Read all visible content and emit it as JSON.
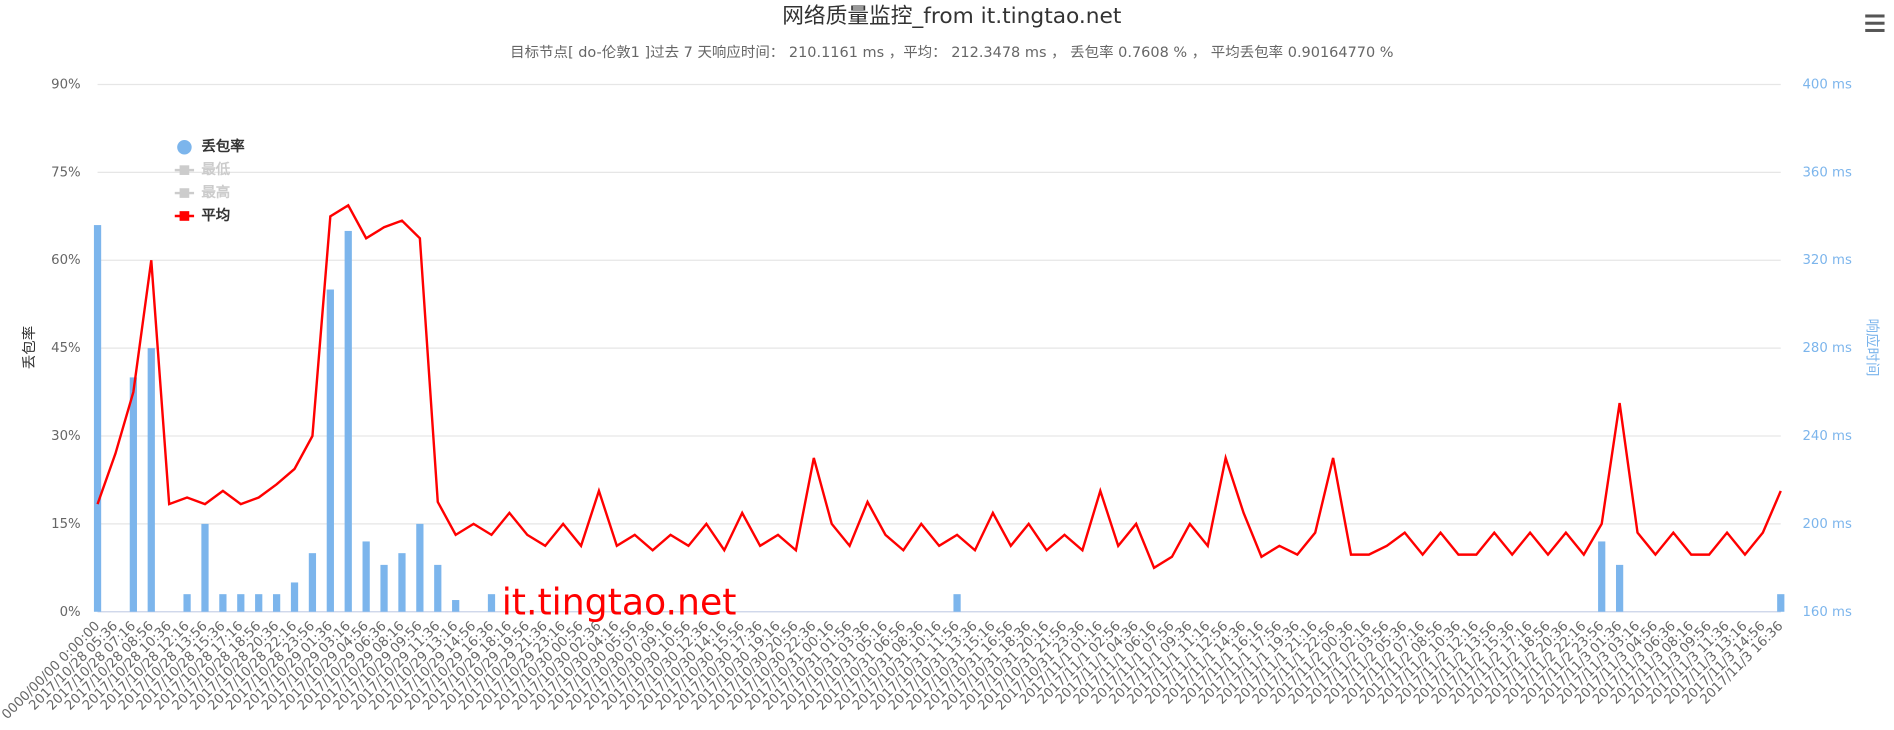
{
  "chart_data": {
    "type": "combo",
    "title": "网络质量监控_from it.tingtao.net",
    "subtitle": "目标节点[ do-伦敦1 ]过去 7 天响应时间： 210.1161 ms ，平均： 212.3478 ms ， 丢包率 0.7608 % ， 平均丢包率 0.90164770 %",
    "y_label": "丢包率",
    "y2_label": "响应时间",
    "watermark": "it.tingtao.net",
    "ylim": [
      0,
      90
    ],
    "yticks": [
      {
        "value": 0,
        "label": "0%"
      },
      {
        "value": 15,
        "label": "15%"
      },
      {
        "value": 30,
        "label": "30%"
      },
      {
        "value": 45,
        "label": "45%"
      },
      {
        "value": 60,
        "label": "60%"
      },
      {
        "value": 75,
        "label": "75%"
      },
      {
        "value": 90,
        "label": "90%"
      }
    ],
    "y2lim": [
      160,
      400
    ],
    "y2ticks": [
      {
        "value": 160,
        "label": "160 ms"
      },
      {
        "value": 200,
        "label": "200 ms"
      },
      {
        "value": 240,
        "label": "240 ms"
      },
      {
        "value": 280,
        "label": "280 ms"
      },
      {
        "value": 320,
        "label": "320 ms"
      },
      {
        "value": 360,
        "label": "360 ms"
      },
      {
        "value": 400,
        "label": "400 ms"
      }
    ],
    "grid": true,
    "categories": [
      "0000/00/00 0:00:00",
      "2017/10/28 05:36",
      "2017/10/28 07:16",
      "2017/10/28 08:56",
      "2017/10/28 10:36",
      "2017/10/28 12:16",
      "2017/10/28 13:56",
      "2017/10/28 15:36",
      "2017/10/28 17:16",
      "2017/10/28 18:56",
      "2017/10/28 20:36",
      "2017/10/28 22:16",
      "2017/10/28 23:56",
      "2017/10/29 01:36",
      "2017/10/29 03:16",
      "2017/10/29 04:56",
      "2017/10/29 06:36",
      "2017/10/29 08:16",
      "2017/10/29 09:56",
      "2017/10/29 11:36",
      "2017/10/29 13:16",
      "2017/10/29 14:56",
      "2017/10/29 16:36",
      "2017/10/29 18:16",
      "2017/10/29 19:56",
      "2017/10/29 21:36",
      "2017/10/29 23:16",
      "2017/10/30 00:56",
      "2017/10/30 02:36",
      "2017/10/30 04:16",
      "2017/10/30 05:56",
      "2017/10/30 07:36",
      "2017/10/30 09:16",
      "2017/10/30 10:56",
      "2017/10/30 12:36",
      "2017/10/30 14:16",
      "2017/10/30 15:56",
      "2017/10/30 17:36",
      "2017/10/30 19:16",
      "2017/10/30 20:56",
      "2017/10/30 22:36",
      "2017/10/31 00:16",
      "2017/10/31 01:56",
      "2017/10/31 03:36",
      "2017/10/31 05:16",
      "2017/10/31 06:56",
      "2017/10/31 08:36",
      "2017/10/31 10:16",
      "2017/10/31 11:56",
      "2017/10/31 13:36",
      "2017/10/31 15:16",
      "2017/10/31 16:56",
      "2017/10/31 18:36",
      "2017/10/31 20:16",
      "2017/10/31 21:56",
      "2017/10/31 23:36",
      "2017/11/1 01:16",
      "2017/11/1 02:56",
      "2017/11/1 04:36",
      "2017/11/1 06:16",
      "2017/11/1 07:56",
      "2017/11/1 09:36",
      "2017/11/1 11:16",
      "2017/11/1 12:56",
      "2017/11/1 14:36",
      "2017/11/1 16:16",
      "2017/11/1 17:56",
      "2017/11/1 19:36",
      "2017/11/1 21:16",
      "2017/11/1 22:56",
      "2017/11/2 00:36",
      "2017/11/2 02:16",
      "2017/11/2 03:56",
      "2017/11/2 05:36",
      "2017/11/2 07:16",
      "2017/11/2 08:56",
      "2017/11/2 10:36",
      "2017/11/2 12:16",
      "2017/11/2 13:56",
      "2017/11/2 15:36",
      "2017/11/2 17:16",
      "2017/11/2 18:56",
      "2017/11/2 20:36",
      "2017/11/2 22:16",
      "2017/11/2 23:56",
      "2017/11/3 01:36",
      "2017/11/3 03:16",
      "2017/11/3 04:56",
      "2017/11/3 06:36",
      "2017/11/3 08:16",
      "2017/11/3 09:56",
      "2017/11/3 11:36",
      "2017/11/3 13:16",
      "2017/11/3 14:56",
      "2017/11/3 16:36"
    ],
    "series": [
      {
        "name": "丢包率",
        "type": "bar",
        "color": "#7cb5ec",
        "visible": true,
        "values": [
          66,
          0,
          40,
          45,
          0,
          3,
          15,
          3,
          3,
          3,
          3,
          5,
          10,
          55,
          65,
          12,
          8,
          10,
          15,
          8,
          2,
          0,
          3,
          0,
          0,
          0,
          0,
          0,
          0,
          0,
          0,
          0,
          0,
          0,
          0,
          0,
          0,
          0,
          0,
          0,
          0,
          0,
          0,
          0,
          0,
          0,
          0,
          0,
          3,
          0,
          0,
          0,
          0,
          0,
          0,
          0,
          0,
          0,
          0,
          0,
          0,
          0,
          0,
          0,
          0,
          0,
          0,
          0,
          0,
          0,
          0,
          0,
          0,
          0,
          0,
          0,
          0,
          0,
          0,
          0,
          0,
          0,
          0,
          0,
          12,
          8,
          0,
          0,
          0,
          0,
          0,
          0,
          0,
          0,
          3
        ]
      },
      {
        "name": "最低",
        "type": "line",
        "axis": "y2",
        "color": "#cccccc",
        "visible": false,
        "values": [
          null,
          null,
          null,
          null,
          null,
          null,
          null,
          null,
          null,
          null,
          null,
          null,
          null,
          null,
          null,
          null,
          null,
          null,
          null,
          null,
          null,
          null,
          null,
          null,
          null,
          null,
          null,
          null,
          null,
          null,
          null,
          null,
          null,
          null,
          null,
          null,
          null,
          null,
          null,
          null,
          null,
          null,
          null,
          null,
          null,
          null,
          null,
          null,
          null,
          null,
          null,
          null,
          null,
          null,
          null,
          null,
          null,
          null,
          null,
          null,
          null,
          null,
          null,
          null,
          null,
          null,
          null,
          null,
          null,
          null,
          null,
          null,
          null,
          null,
          null,
          null,
          null,
          null,
          null,
          null,
          null,
          null,
          null,
          null,
          null,
          null,
          null,
          null,
          null,
          null,
          null,
          null,
          null,
          null,
          null
        ]
      },
      {
        "name": "最高",
        "type": "line",
        "axis": "y2",
        "color": "#cccccc",
        "visible": false,
        "values": [
          null,
          null,
          null,
          null,
          null,
          null,
          null,
          null,
          null,
          null,
          null,
          null,
          null,
          null,
          null,
          null,
          null,
          null,
          null,
          null,
          null,
          null,
          null,
          null,
          null,
          null,
          null,
          null,
          null,
          null,
          null,
          null,
          null,
          null,
          null,
          null,
          null,
          null,
          null,
          null,
          null,
          null,
          null,
          null,
          null,
          null,
          null,
          null,
          null,
          null,
          null,
          null,
          null,
          null,
          null,
          null,
          null,
          null,
          null,
          null,
          null,
          null,
          null,
          null,
          null,
          null,
          null,
          null,
          null,
          null,
          null,
          null,
          null,
          null,
          null,
          null,
          null,
          null,
          null,
          null,
          null,
          null,
          null,
          null,
          null,
          null,
          null,
          null,
          null,
          null,
          null,
          null,
          null,
          null,
          null
        ]
      },
      {
        "name": "平均",
        "type": "line",
        "axis": "y2",
        "color": "#ff0000",
        "visible": true,
        "values": [
          209,
          232,
          260,
          320,
          209,
          212,
          209,
          215,
          209,
          212,
          218,
          225,
          240,
          340,
          345,
          330,
          335,
          338,
          330,
          210,
          195,
          200,
          195,
          205,
          195,
          190,
          200,
          190,
          215,
          190,
          195,
          188,
          195,
          190,
          200,
          188,
          205,
          190,
          195,
          188,
          230,
          200,
          190,
          210,
          195,
          188,
          200,
          190,
          195,
          188,
          205,
          190,
          200,
          188,
          195,
          188,
          215,
          190,
          200,
          180,
          185,
          200,
          190,
          230,
          205,
          185,
          190,
          186,
          196,
          230,
          186,
          186,
          190,
          196,
          186,
          196,
          186,
          186,
          196,
          186,
          196,
          186,
          196,
          186,
          200,
          255,
          196,
          186,
          196,
          186,
          186,
          196,
          186,
          196,
          215
        ]
      }
    ]
  }
}
